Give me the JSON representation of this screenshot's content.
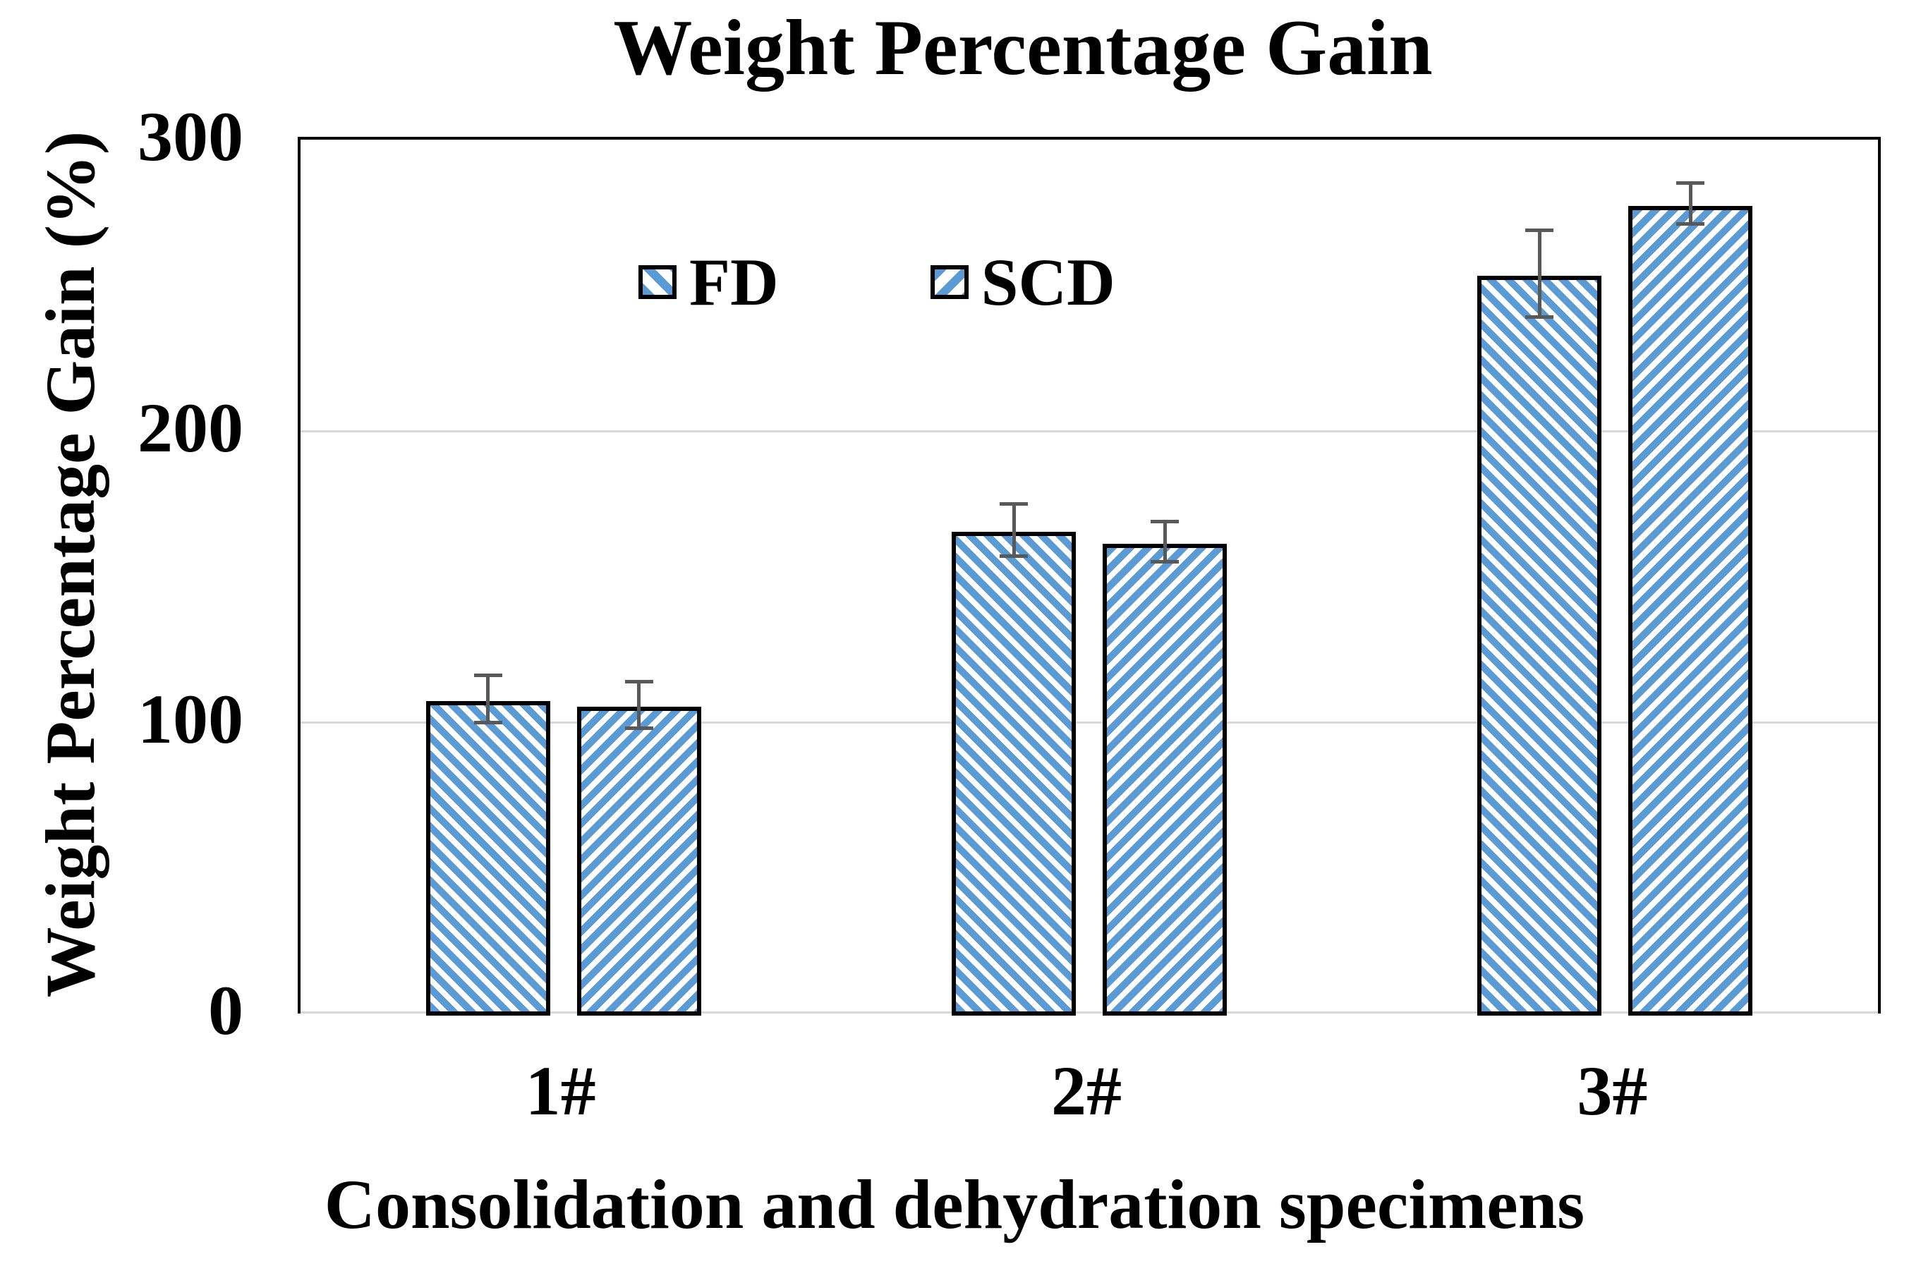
{
  "chart_data": {
    "type": "bar",
    "title": "Weight Percentage Gain",
    "xlabel": "Consolidation and dehydration specimens",
    "ylabel": "Weight Percentage Gain (%)",
    "categories": [
      "1#",
      "2#",
      "3#"
    ],
    "series": [
      {
        "name": "FD",
        "hatch": "backslash-diagonal",
        "values": [
          108,
          166,
          254
        ],
        "errors": [
          8,
          9,
          15
        ]
      },
      {
        "name": "SCD",
        "hatch": "forward-diagonal",
        "values": [
          106,
          162,
          278
        ],
        "errors": [
          8,
          7,
          7
        ]
      }
    ],
    "ylim": [
      0,
      300
    ],
    "yticks": [
      0,
      100,
      200,
      300
    ],
    "grid": "horizontal",
    "legend_position": "top-inside-left-of-center",
    "colors": {
      "hatch_blue": "#5B9BD5",
      "bar_fill_background": "#FFFFFF",
      "bar_border": "#000000",
      "error_bar": "#595959",
      "gridline": "#D9D9D9",
      "axis_frame": "#000000",
      "text": "#000000",
      "background": "#FFFFFF"
    }
  }
}
